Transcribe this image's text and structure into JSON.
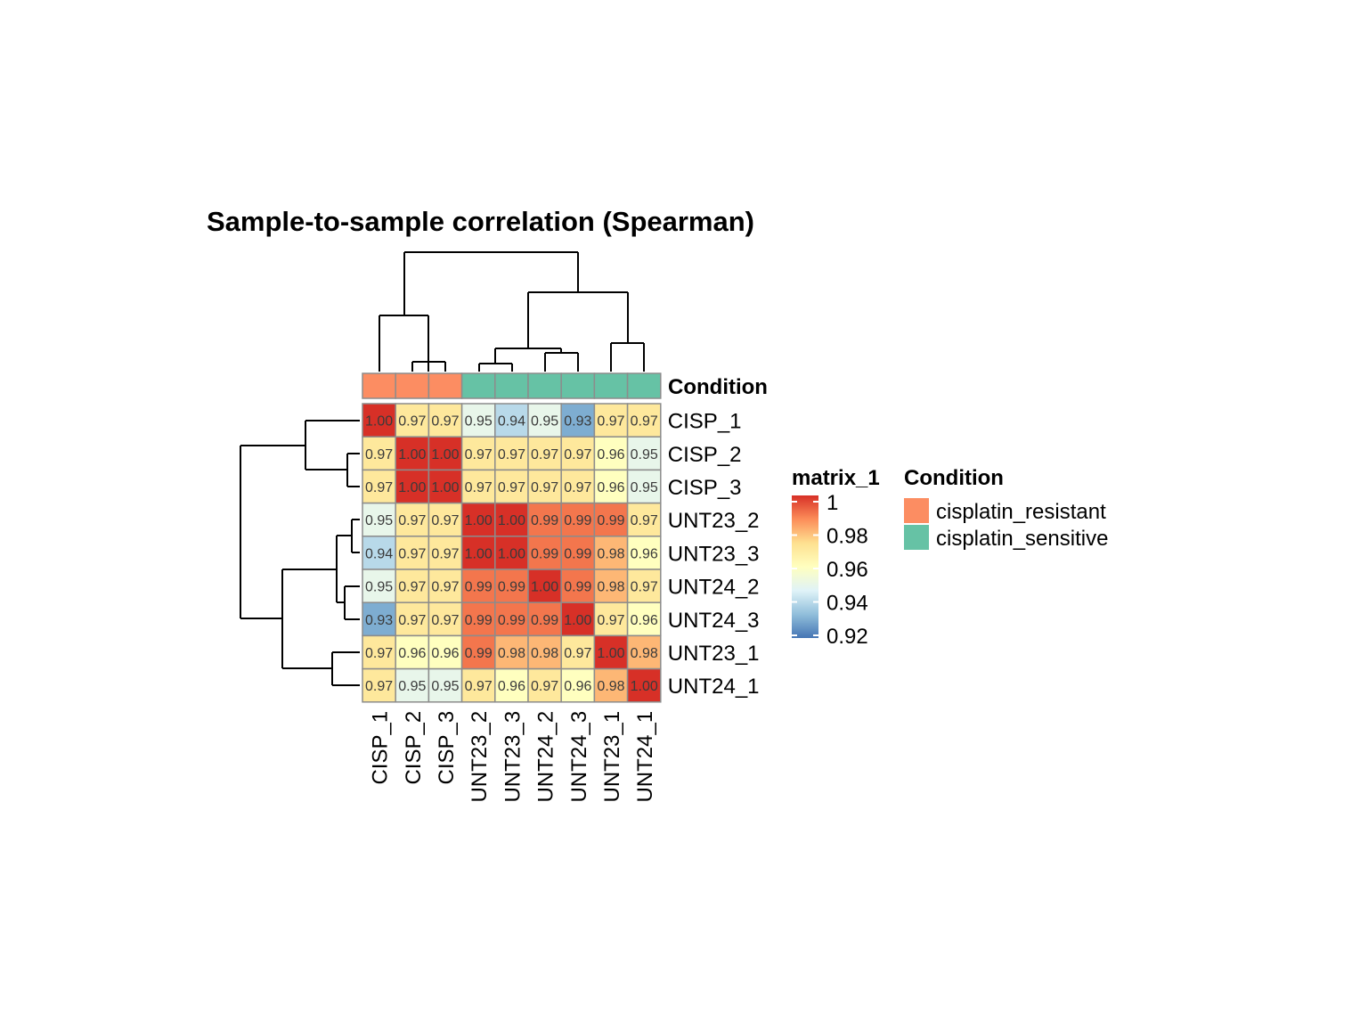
{
  "chart_data": {
    "type": "heatmap",
    "title": "Sample-to-sample correlation (Spearman)",
    "row_labels": [
      "CISP_1",
      "CISP_2",
      "CISP_3",
      "UNT23_2",
      "UNT23_3",
      "UNT24_2",
      "UNT24_3",
      "UNT23_1",
      "UNT24_1"
    ],
    "col_labels": [
      "CISP_1",
      "CISP_2",
      "CISP_3",
      "UNT23_2",
      "UNT23_3",
      "UNT24_2",
      "UNT24_3",
      "UNT23_1",
      "UNT24_1"
    ],
    "values": [
      [
        1.0,
        0.97,
        0.97,
        0.95,
        0.94,
        0.95,
        0.93,
        0.97,
        0.97
      ],
      [
        0.97,
        1.0,
        1.0,
        0.97,
        0.97,
        0.97,
        0.97,
        0.96,
        0.95
      ],
      [
        0.97,
        1.0,
        1.0,
        0.97,
        0.97,
        0.97,
        0.97,
        0.96,
        0.95
      ],
      [
        0.95,
        0.97,
        0.97,
        1.0,
        1.0,
        0.99,
        0.99,
        0.99,
        0.97
      ],
      [
        0.94,
        0.97,
        0.97,
        1.0,
        1.0,
        0.99,
        0.99,
        0.98,
        0.96
      ],
      [
        0.95,
        0.97,
        0.97,
        0.99,
        0.99,
        1.0,
        0.99,
        0.98,
        0.97
      ],
      [
        0.93,
        0.97,
        0.97,
        0.99,
        0.99,
        0.99,
        1.0,
        0.97,
        0.96
      ],
      [
        0.97,
        0.96,
        0.96,
        0.99,
        0.98,
        0.98,
        0.97,
        1.0,
        0.98
      ],
      [
        0.97,
        0.95,
        0.95,
        0.97,
        0.96,
        0.97,
        0.96,
        0.98,
        1.0
      ]
    ],
    "annotation": {
      "name": "Condition",
      "values": [
        "cisplatin_resistant",
        "cisplatin_resistant",
        "cisplatin_resistant",
        "cisplatin_sensitive",
        "cisplatin_sensitive",
        "cisplatin_sensitive",
        "cisplatin_sensitive",
        "cisplatin_sensitive",
        "cisplatin_sensitive"
      ],
      "colors": {
        "cisplatin_resistant": "#FC8D62",
        "cisplatin_sensitive": "#66C2A5"
      }
    },
    "colorbar": {
      "title": "matrix_1",
      "range": [
        0.92,
        1.0
      ],
      "ticks": [
        1,
        0.98,
        0.96,
        0.94,
        0.92
      ],
      "tick_labels": [
        "1",
        "0.98",
        "0.96",
        "0.94",
        "0.92"
      ],
      "colors": [
        "#4575B4",
        "#91BFDB",
        "#E0F3F8",
        "#FFFFBF",
        "#FEE090",
        "#FC8D59",
        "#D73027"
      ]
    },
    "legend": {
      "title": "Condition",
      "items": [
        {
          "label": "cisplatin_resistant",
          "color": "#FC8D62"
        },
        {
          "label": "cisplatin_sensitive",
          "color": "#66C2A5"
        }
      ]
    },
    "dendrogram": {
      "clusters": [
        "CISP_1",
        "CISP_2 + CISP_3",
        "UNT23_2 + UNT23_3",
        "UNT24_2 + UNT24_3",
        "UNT23_1 + UNT24_1"
      ]
    }
  }
}
